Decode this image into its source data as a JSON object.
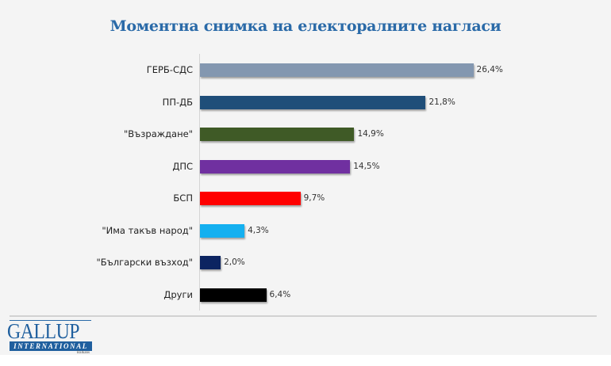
{
  "title": "Моментна снимка на електоралните нагласи",
  "logo": {
    "main": "GALLUP",
    "sub": "INTERNATIONAL",
    "region": "Balkans"
  },
  "bars": [
    {
      "label": "ГЕРБ-СДС",
      "value": 26.4,
      "display": "26,4%",
      "color": "#8397b0"
    },
    {
      "label": "ПП-ДБ",
      "value": 21.8,
      "display": "21,8%",
      "color": "#1f4e79"
    },
    {
      "label": "\"Възраждане\"",
      "value": 14.9,
      "display": "14,9%",
      "color": "#3f5a26"
    },
    {
      "label": "ДПС",
      "value": 14.5,
      "display": "14,5%",
      "color": "#7030a0"
    },
    {
      "label": "БСП",
      "value": 9.7,
      "display": "9,7%",
      "color": "#ff0000"
    },
    {
      "label": "\"Има такъв народ\"",
      "value": 4.3,
      "display": "4,3%",
      "color": "#14b0f0"
    },
    {
      "label": "\"Български възход\"",
      "value": 2.0,
      "display": "2,0%",
      "color": "#0c2461"
    },
    {
      "label": "Други",
      "value": 6.4,
      "display": "6,4%",
      "color": "#000000"
    }
  ],
  "chart_data": {
    "type": "bar",
    "orientation": "horizontal",
    "title": "Моментна снимка на електоралните нагласи",
    "categories": [
      "ГЕРБ-СДС",
      "ПП-ДБ",
      "\"Възраждане\"",
      "ДПС",
      "БСП",
      "\"Има такъв народ\"",
      "\"Български възход\"",
      "Други"
    ],
    "values": [
      26.4,
      21.8,
      14.9,
      14.5,
      9.7,
      4.3,
      2.0,
      6.4
    ],
    "value_labels": [
      "26,4%",
      "21,8%",
      "14,9%",
      "14,5%",
      "9,7%",
      "4,3%",
      "2,0%",
      "6,4%"
    ],
    "colors": [
      "#8397b0",
      "#1f4e79",
      "#3f5a26",
      "#7030a0",
      "#ff0000",
      "#14b0f0",
      "#0c2461",
      "#000000"
    ],
    "xlabel": "",
    "ylabel": "",
    "unit": "%",
    "grid": false,
    "legend": "none",
    "source_logo": "GALLUP INTERNATIONAL Balkans"
  }
}
